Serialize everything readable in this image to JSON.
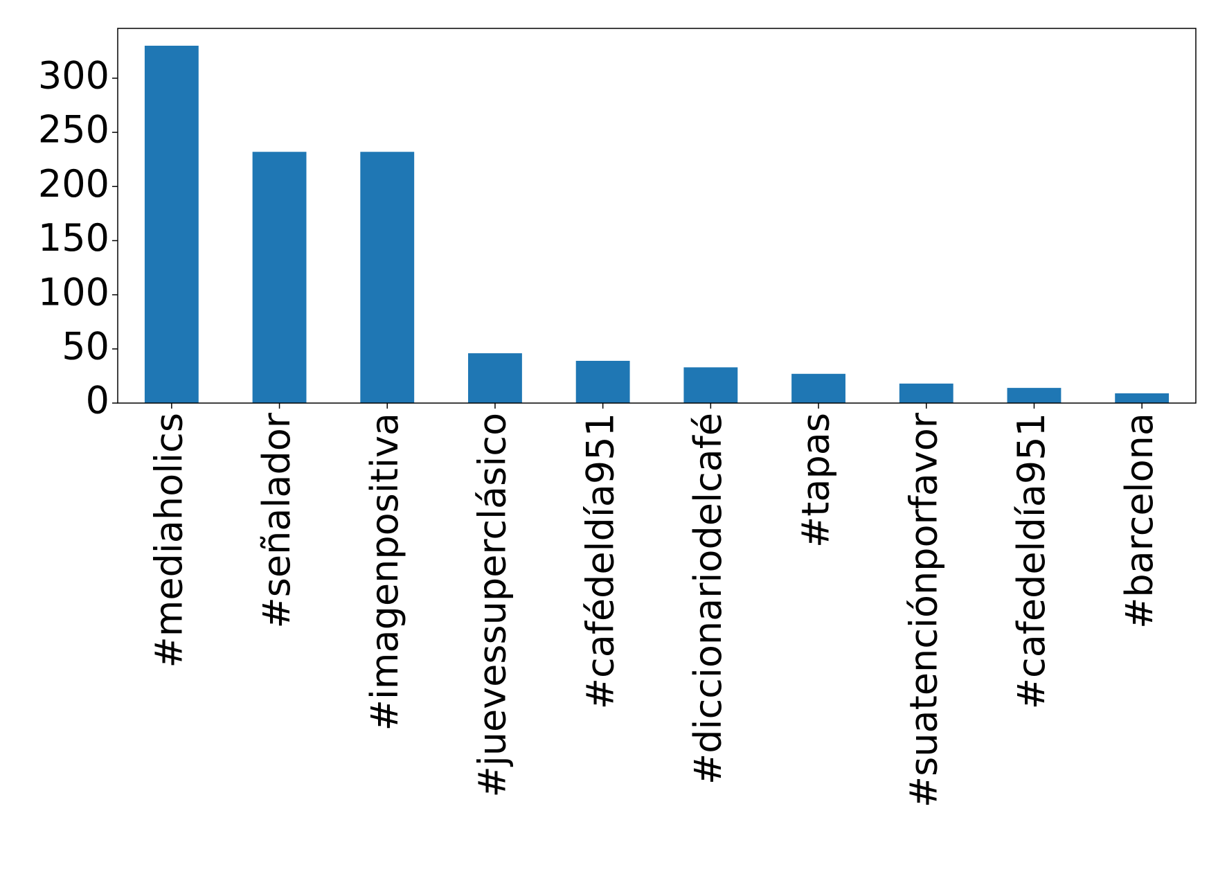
{
  "chart_data": {
    "type": "bar",
    "categories": [
      "#mediaholics",
      "#señalador",
      "#imagenpositiva",
      "#juevessuperclásico",
      "#cafédeldía951",
      "#diccionariodelcafé",
      "#tapas",
      "#suatenciónporfavor",
      "#cafedeldía951",
      "#barcelona"
    ],
    "values": [
      330,
      232,
      232,
      46,
      39,
      33,
      27,
      18,
      14,
      9
    ],
    "color": "#1f77b4",
    "ylim": [
      0,
      346
    ],
    "yticks": [
      0,
      50,
      100,
      150,
      200,
      250,
      300
    ],
    "grid": false
  }
}
